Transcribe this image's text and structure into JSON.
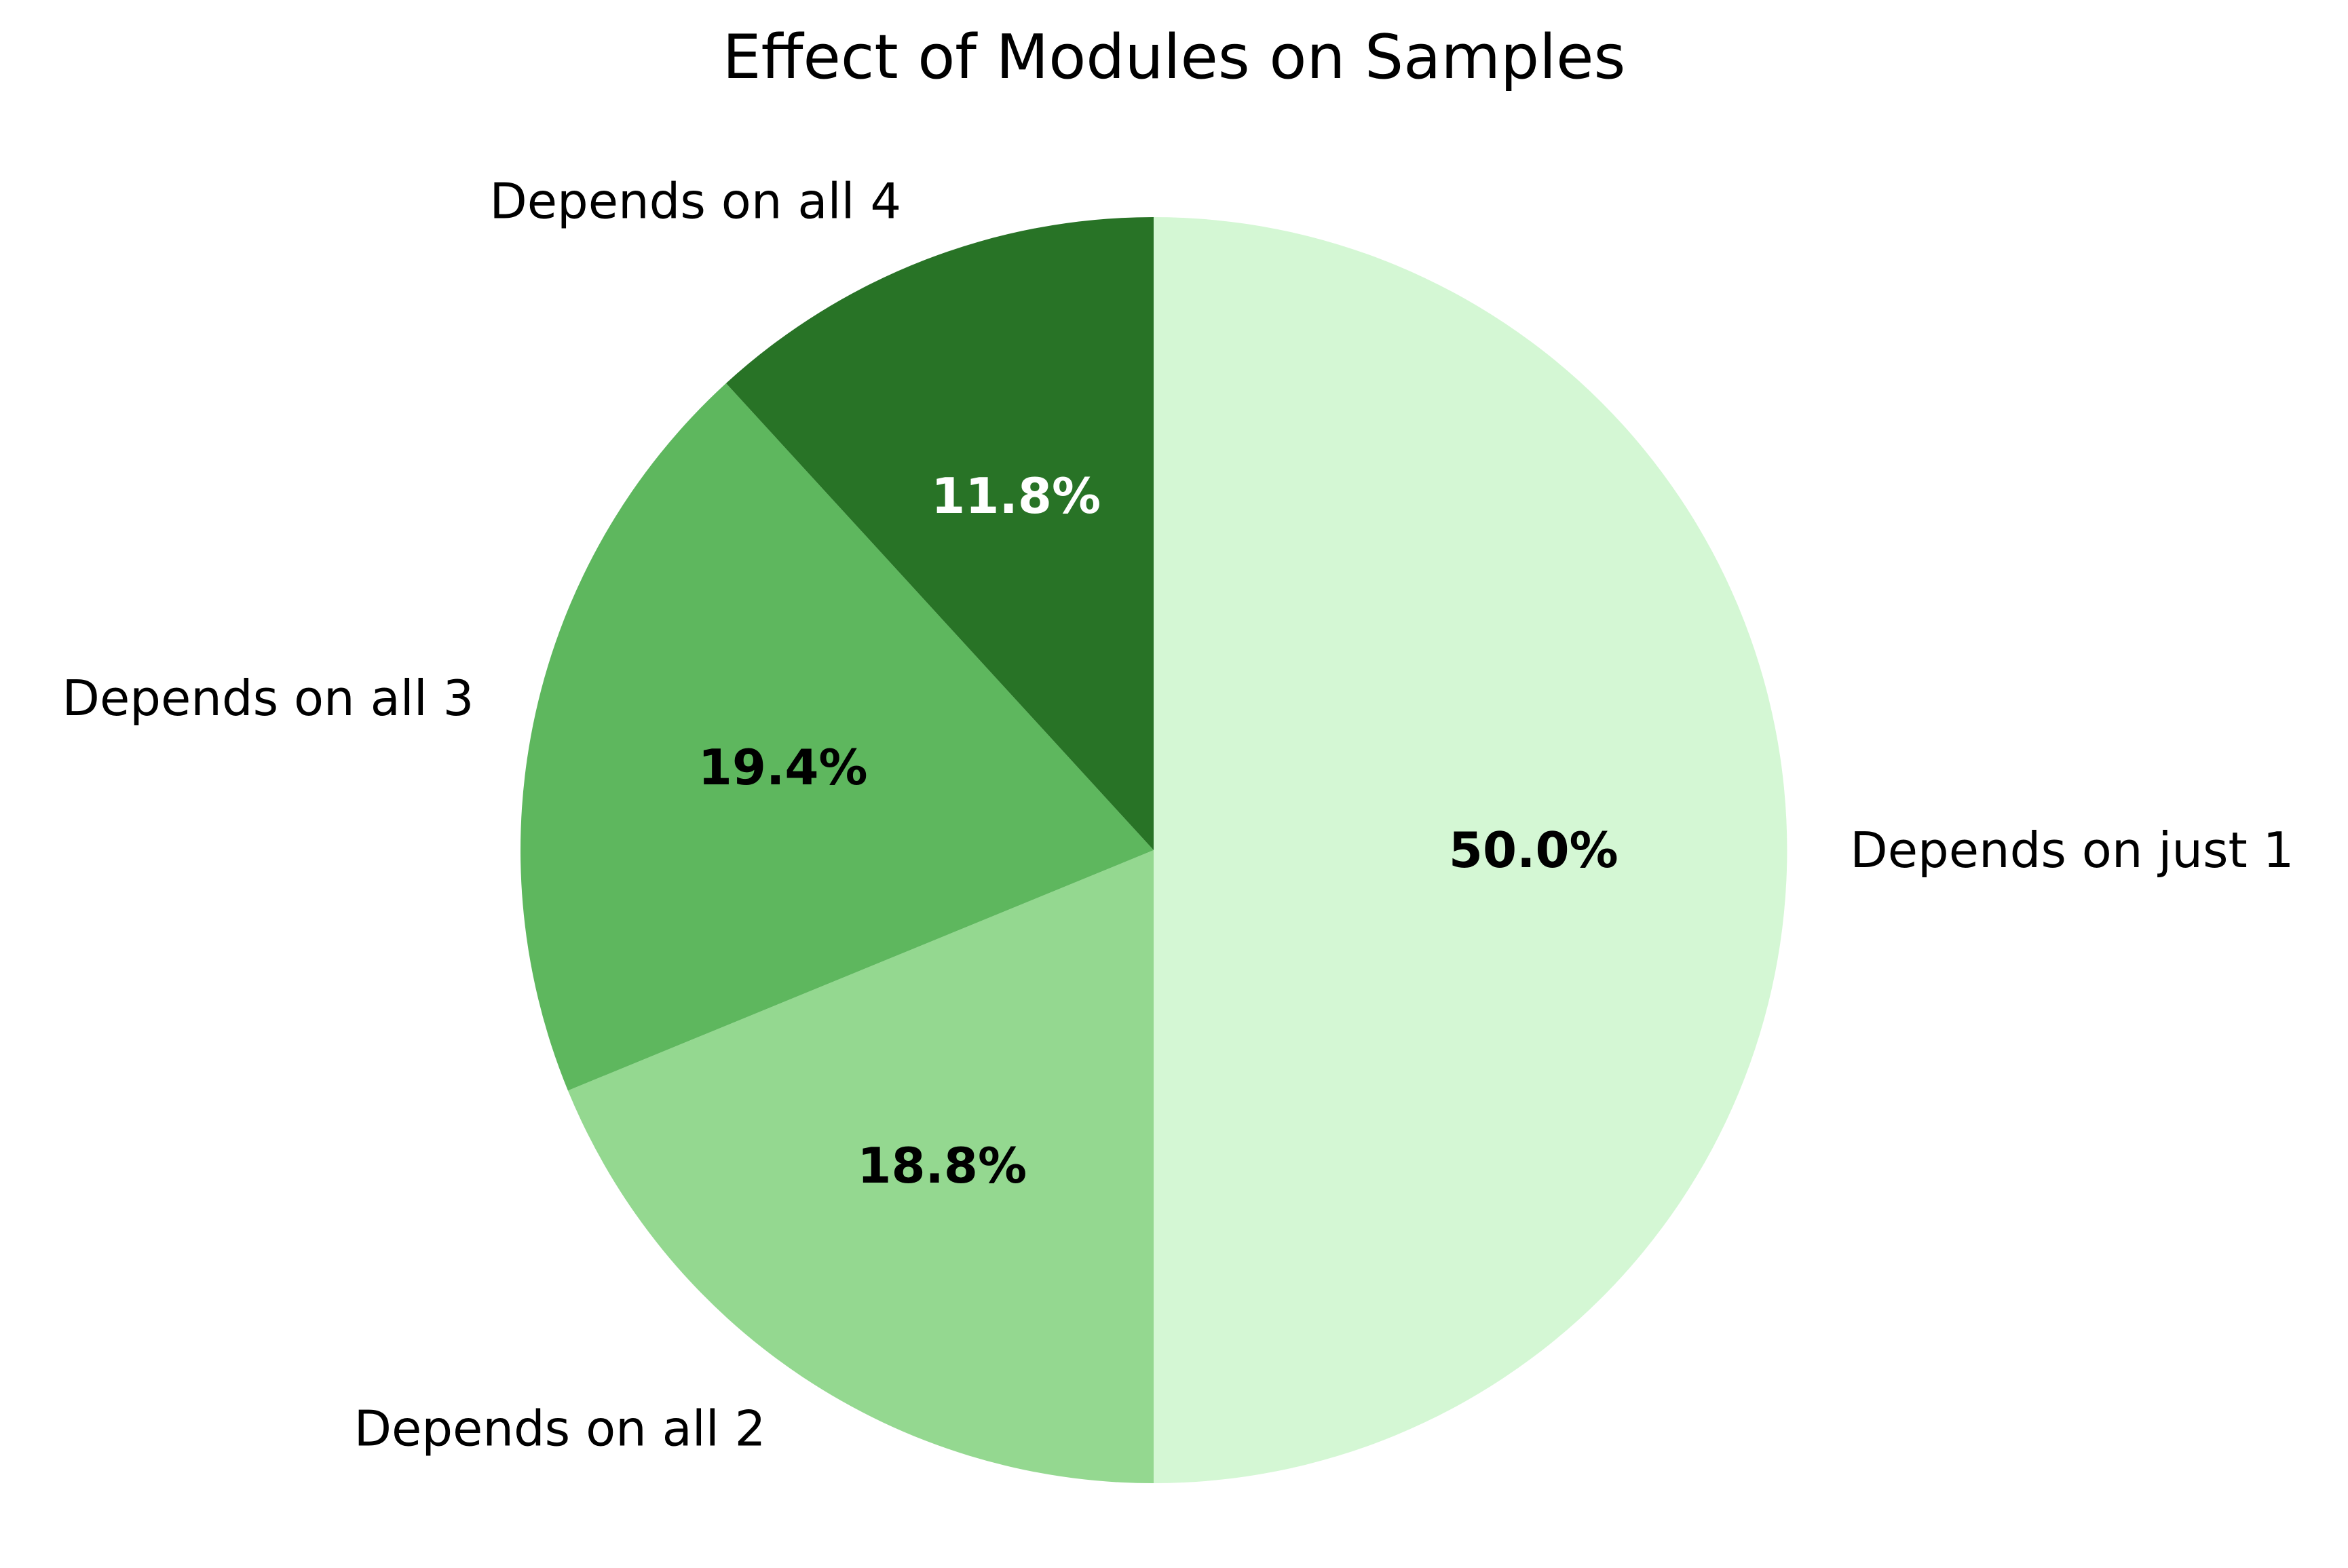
{
  "chart_data": {
    "type": "pie",
    "title": "Effect of Modules on Samples",
    "start_angle_deg": 90,
    "direction": "clockwise",
    "legend": "none",
    "slices": [
      {
        "label": "Depends on just 1",
        "value": 50.0,
        "percent_label": "50.0%",
        "color": "#d4f7d4",
        "percent_color": "#000000"
      },
      {
        "label": "Depends on all 2",
        "value": 18.8,
        "percent_label": "18.8%",
        "color": "#94d890",
        "percent_color": "#000000"
      },
      {
        "label": "Depends on all 3",
        "value": 19.4,
        "percent_label": "19.4%",
        "color": "#5eb75e",
        "percent_color": "#000000"
      },
      {
        "label": "Depends on all 4",
        "value": 11.8,
        "percent_label": "11.8%",
        "color": "#287326",
        "percent_color": "#ffffff"
      }
    ]
  }
}
